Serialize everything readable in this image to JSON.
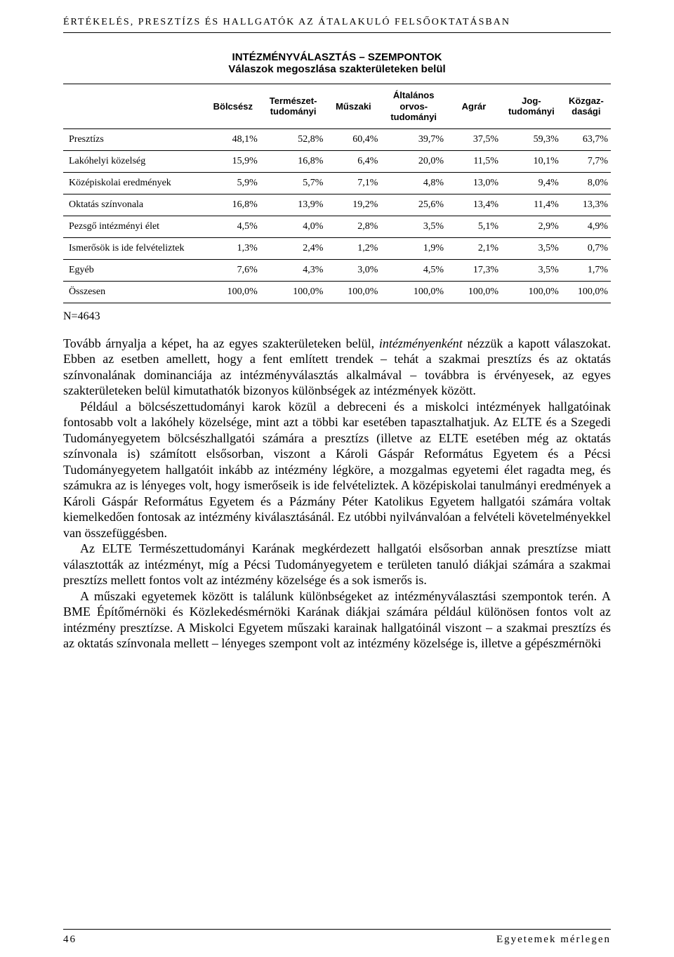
{
  "runningHead": "ÉRTÉKELÉS, PRESZTÍZS ÉS HALLGATÓK AZ ÁTALAKULÓ FELSŐOKTATÁSBAN",
  "tableTitle": "INTÉZMÉNYVÁLASZTÁS – SZEMPONTOK",
  "tableSubtitle": "Válaszok megoszlása szakterületeken belül",
  "table": {
    "columns": [
      "",
      "Bölcsész",
      "Természet-\ntudományi",
      "Műszaki",
      "Általános\norvos-\ntudományi",
      "Agrár",
      "Jog-\ntudományi",
      "Közgaz-\ndasági"
    ],
    "rows": [
      [
        "Presztízs",
        "48,1%",
        "52,8%",
        "60,4%",
        "39,7%",
        "37,5%",
        "59,3%",
        "63,7%"
      ],
      [
        "Lakóhelyi közelség",
        "15,9%",
        "16,8%",
        "6,4%",
        "20,0%",
        "11,5%",
        "10,1%",
        "7,7%"
      ],
      [
        "Középiskolai eredmények",
        "5,9%",
        "5,7%",
        "7,1%",
        "4,8%",
        "13,0%",
        "9,4%",
        "8,0%"
      ],
      [
        "Oktatás színvonala",
        "16,8%",
        "13,9%",
        "19,2%",
        "25,6%",
        "13,4%",
        "11,4%",
        "13,3%"
      ],
      [
        "Pezsgő intézményi élet",
        "4,5%",
        "4,0%",
        "2,8%",
        "3,5%",
        "5,1%",
        "2,9%",
        "4,9%"
      ],
      [
        "Ismerősök is ide felvételiztek",
        "1,3%",
        "2,4%",
        "1,2%",
        "1,9%",
        "2,1%",
        "3,5%",
        "0,7%"
      ],
      [
        "Egyéb",
        "7,6%",
        "4,3%",
        "3,0%",
        "4,5%",
        "17,3%",
        "3,5%",
        "1,7%"
      ],
      [
        "Összesen",
        "100,0%",
        "100,0%",
        "100,0%",
        "100,0%",
        "100,0%",
        "100,0%",
        "100,0%"
      ]
    ],
    "colWidths": [
      "26%",
      "10%",
      "12%",
      "10%",
      "12%",
      "10%",
      "11%",
      "9%"
    ]
  },
  "note": "N=4643",
  "paragraphs": {
    "p1_a": "Tovább árnyalja a képet, ha az egyes szakterületeken belül, ",
    "p1_it": "intézményenként",
    "p1_b": " nézzük a kapott válaszokat. Ebben az esetben amellett, hogy a fent említett trendek – tehát a szakmai presztízs és az oktatás színvonalának dominanciája az intézményválasztás alkalmával – továbbra is érvényesek, az egyes szakterületeken belül kimutathatók bizonyos különbségek az intézmények között.",
    "p2": "Például a bölcsészettudományi karok közül a debreceni és a miskolci intézmények hallgatóinak fontosabb volt a lakóhely közelsége, mint azt a többi kar esetében tapasztalhatjuk. Az ELTE és a Szegedi Tudományegyetem bölcsészhallgatói számára a presztízs (illetve az ELTE esetében még az oktatás színvonala is) számított elsősorban, viszont a Károli Gáspár Református Egyetem és a Pécsi Tudományegyetem hallgatóit inkább az intézmény légköre, a mozgalmas egyetemi élet ragadta meg, és számukra az is lényeges volt, hogy ismerőseik is ide felvételiztek. A középiskolai tanulmányi eredmények a Károli Gáspár Református Egyetem és a Pázmány Péter Katolikus Egyetem hallgatói számára voltak kiemelkedően fontosak az intézmény kiválasztásánál. Ez utóbbi nyilvánvalóan a felvételi követelményekkel van összefüggésben.",
    "p3": "Az ELTE Természettudományi Karának megkérdezett hallgatói elsősorban annak presztízse miatt választották az intézményt, míg a Pécsi Tudományegyetem e területen tanuló diákjai számára a szakmai presztízs mellett fontos volt az intézmény közelsége és a sok ismerős is.",
    "p4": "A műszaki egyetemek között is találunk különbségeket az intézményválasztási szempontok terén. A BME Építőmérnöki és Közlekedésmérnöki Karának diákjai számára például különösen fontos volt az intézmény presztízse. A Miskolci Egyetem műszaki karainak hallgatóinál viszont – a szakmai presztízs és az oktatás színvonala mellett – lényeges szempont volt az intézmény közelsége is, illetve a gépészmérnöki"
  },
  "footer": {
    "pageNumber": "46",
    "publication": "Egyetemek mérlegen"
  }
}
